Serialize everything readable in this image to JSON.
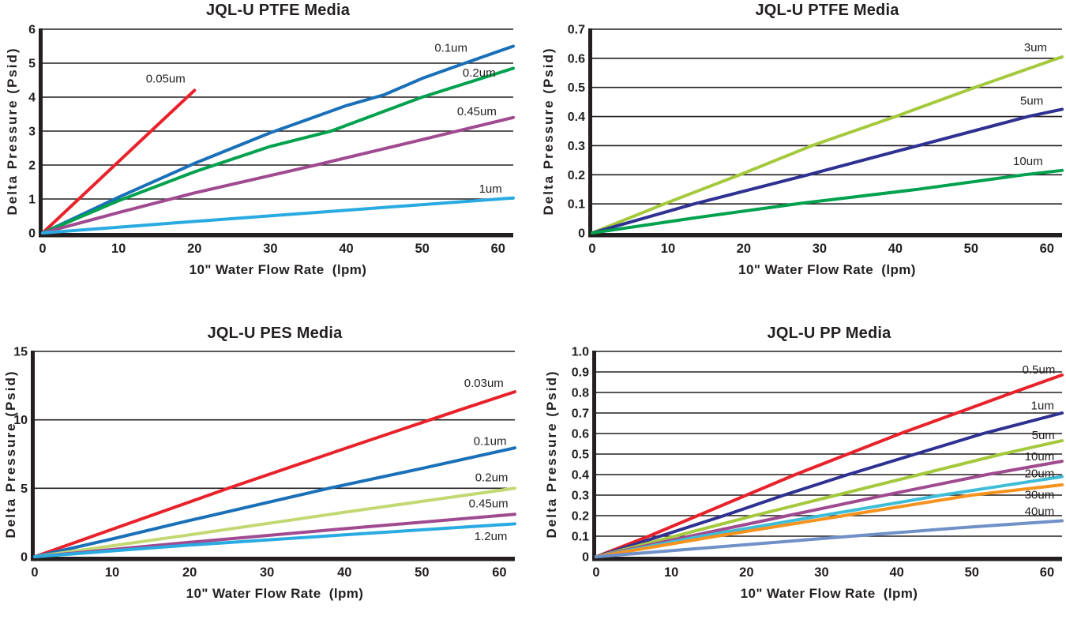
{
  "style": {
    "background": "#ffffff",
    "axis_color": "#231f20",
    "series_stroke_width": 4,
    "palette": {
      "red": "#e8222b",
      "blue": "#1a70b8",
      "green": "#00a14e",
      "magenta": "#a04a90",
      "cyan": "#29abe2",
      "navy": "#2e3192",
      "yellow_green": "#a4c93c",
      "pale_green": "#c3d872",
      "teal": "#3fbdd8",
      "orange": "#f6921e",
      "steel_blue": "#7090c8"
    }
  },
  "chart_data": [
    {
      "type": "line",
      "title": "JQL-U PTFE Media",
      "xlabel": "10\" Water Flow Rate  (lpm)",
      "ylabel": "Delta Pressure (Psid)",
      "xlim": [
        0,
        62
      ],
      "ylim": [
        0,
        6
      ],
      "xticks": [
        0,
        10,
        20,
        30,
        40,
        50,
        60
      ],
      "yticks": [
        0,
        1,
        2,
        3,
        4,
        5,
        6
      ],
      "ytick_labels": [
        "0",
        "1",
        "2",
        "3",
        "4",
        "5",
        "6"
      ],
      "grid": "horizontal",
      "legend_position": "inline-labels",
      "series": [
        {
          "name": "0.05um",
          "color": "#e8222b",
          "points": [
            [
              0,
              0
            ],
            [
              5,
              1.05
            ],
            [
              10,
              2.1
            ],
            [
              15,
              3.15
            ],
            [
              20,
              4.2
            ]
          ],
          "label_pos": [
            16.2,
            4.55
          ]
        },
        {
          "name": "0.1um",
          "color": "#1a70b8",
          "points": [
            [
              0,
              0
            ],
            [
              10,
              1.05
            ],
            [
              20,
              2.05
            ],
            [
              30,
              2.95
            ],
            [
              40,
              3.75
            ],
            [
              45,
              4.07
            ],
            [
              50,
              4.55
            ],
            [
              55,
              4.95
            ],
            [
              62,
              5.5
            ]
          ],
          "label_pos": [
            53.8,
            5.45
          ]
        },
        {
          "name": "0.2um",
          "color": "#00a14e",
          "points": [
            [
              0,
              0
            ],
            [
              10,
              0.95
            ],
            [
              20,
              1.8
            ],
            [
              30,
              2.55
            ],
            [
              38,
              3.0
            ],
            [
              50,
              4.0
            ],
            [
              62,
              4.85
            ]
          ],
          "label_pos": [
            57.5,
            4.72
          ]
        },
        {
          "name": "0.45um",
          "color": "#a04a90",
          "points": [
            [
              0,
              0
            ],
            [
              10,
              0.6
            ],
            [
              20,
              1.18
            ],
            [
              36,
              2.0
            ],
            [
              50,
              2.75
            ],
            [
              62,
              3.4
            ]
          ],
          "label_pos": [
            57.2,
            3.58
          ]
        },
        {
          "name": "1um",
          "color": "#29abe2",
          "points": [
            [
              0,
              0
            ],
            [
              20,
              0.34
            ],
            [
              40,
              0.67
            ],
            [
              62,
              1.03
            ]
          ],
          "label_pos": [
            59,
            1.3
          ]
        }
      ]
    },
    {
      "type": "line",
      "title": "JQL-U PTFE Media",
      "xlabel": "10\" Water Flow Rate  (lpm)",
      "ylabel": "Delta Pressure (Psid)",
      "xlim": [
        0,
        62
      ],
      "ylim": [
        0,
        0.7
      ],
      "xticks": [
        0,
        10,
        20,
        30,
        40,
        50,
        60
      ],
      "yticks": [
        0,
        0.1,
        0.2,
        0.3,
        0.4,
        0.5,
        0.6,
        0.7
      ],
      "ytick_labels": [
        "0",
        "0.1",
        "0.2",
        "0.3",
        "0.4",
        "0.5",
        "0.6",
        "0.7"
      ],
      "grid": "horizontal",
      "legend_position": "inline-labels",
      "series": [
        {
          "name": "3um",
          "color": "#a4c93c",
          "points": [
            [
              0,
              0
            ],
            [
              10,
              0.105
            ],
            [
              19.5,
              0.2
            ],
            [
              29,
              0.3
            ],
            [
              40,
              0.4
            ],
            [
              50.5,
              0.5
            ],
            [
              62,
              0.605
            ]
          ],
          "label_pos": [
            58.5,
            0.637
          ]
        },
        {
          "name": "5um",
          "color": "#2e3192",
          "points": [
            [
              0,
              0
            ],
            [
              13.5,
              0.1
            ],
            [
              28.5,
              0.2
            ],
            [
              43,
              0.3
            ],
            [
              57.5,
              0.4
            ],
            [
              62,
              0.425
            ]
          ],
          "label_pos": [
            58,
            0.455
          ]
        },
        {
          "name": "10um",
          "color": "#00a14e",
          "points": [
            [
              0,
              0
            ],
            [
              13,
              0.05
            ],
            [
              27,
              0.1
            ],
            [
              43,
              0.15
            ],
            [
              57,
              0.2
            ],
            [
              62,
              0.215
            ]
          ],
          "label_pos": [
            57.5,
            0.247
          ]
        }
      ]
    },
    {
      "type": "line",
      "title": "JQL-U PES Media",
      "xlabel": "10\" Water Flow Rate  (lpm)",
      "ylabel": "Delta Pressure (Psid)",
      "xlim": [
        0,
        62
      ],
      "ylim": [
        0,
        15
      ],
      "xticks": [
        0,
        10,
        20,
        30,
        40,
        50,
        60
      ],
      "yticks": [
        0,
        5,
        10,
        15
      ],
      "ytick_labels": [
        "0",
        "5",
        "10",
        "15"
      ],
      "grid": "horizontal",
      "legend_position": "inline-labels",
      "series": [
        {
          "name": "0.03um",
          "color": "#e8222b",
          "points": [
            [
              0,
              0
            ],
            [
              10,
              2.0
            ],
            [
              25,
              5.0
            ],
            [
              40,
              7.9
            ],
            [
              55,
              10.75
            ],
            [
              62,
              12.05
            ]
          ],
          "label_pos": [
            58,
            12.7
          ]
        },
        {
          "name": "0.1um",
          "color": "#1a70b8",
          "points": [
            [
              0,
              0
            ],
            [
              10,
              1.3
            ],
            [
              20,
              2.65
            ],
            [
              38,
              5.0
            ],
            [
              50,
              6.45
            ],
            [
              62,
              7.95
            ]
          ],
          "label_pos": [
            58.8,
            8.45
          ]
        },
        {
          "name": "0.2um",
          "color": "#c3d872",
          "points": [
            [
              0,
              0
            ],
            [
              20,
              1.6
            ],
            [
              40,
              3.25
            ],
            [
              62,
              5.0
            ]
          ],
          "label_pos": [
            59,
            5.8
          ]
        },
        {
          "name": "0.45um",
          "color": "#a04a90",
          "points": [
            [
              0,
              0
            ],
            [
              20,
              1.05
            ],
            [
              40,
              2.05
            ],
            [
              62,
              3.1
            ]
          ],
          "label_pos": [
            58.6,
            3.9
          ]
        },
        {
          "name": "1.2um",
          "color": "#29abe2",
          "points": [
            [
              0,
              0
            ],
            [
              20,
              0.85
            ],
            [
              40,
              1.6
            ],
            [
              62,
              2.4
            ]
          ],
          "label_pos": [
            58.9,
            1.5
          ]
        }
      ]
    },
    {
      "type": "line",
      "title": "JQL-U PP Media",
      "xlabel": "10\" Water Flow Rate  (lpm)",
      "ylabel": "Delta Pressure (Psid)",
      "xlim": [
        0,
        62
      ],
      "ylim": [
        0,
        1.0
      ],
      "xticks": [
        0,
        10,
        20,
        30,
        40,
        50,
        60
      ],
      "yticks": [
        0,
        0.1,
        0.2,
        0.3,
        0.4,
        0.5,
        0.6,
        0.7,
        0.8,
        0.9,
        1.0
      ],
      "ytick_labels": [
        "0",
        "0.1",
        "0.2",
        "0.3",
        "0.4",
        "0.5",
        "0.6",
        "0.7",
        "0.8",
        "0.9",
        "1.0"
      ],
      "grid": "horizontal",
      "legend_position": "inline-labels",
      "series": [
        {
          "name": "0.5um",
          "color": "#e8222b",
          "points": [
            [
              0,
              0
            ],
            [
              7,
              0.1
            ],
            [
              13.5,
              0.2
            ],
            [
              20,
              0.3
            ],
            [
              26.5,
              0.4
            ],
            [
              33.5,
              0.5
            ],
            [
              40.5,
              0.6
            ],
            [
              48,
              0.7
            ],
            [
              55.5,
              0.8
            ],
            [
              62,
              0.885
            ]
          ],
          "label_pos": [
            58.9,
            0.912
          ]
        },
        {
          "name": "1um",
          "color": "#2e3192",
          "points": [
            [
              0,
              0
            ],
            [
              8.5,
              0.1
            ],
            [
              17,
              0.2
            ],
            [
              25,
              0.3
            ],
            [
              33.5,
              0.4
            ],
            [
              42.5,
              0.5
            ],
            [
              51.5,
              0.6
            ],
            [
              62,
              0.7
            ]
          ],
          "label_pos": [
            59.4,
            0.737
          ]
        },
        {
          "name": "5um",
          "color": "#a4c93c",
          "points": [
            [
              0,
              0
            ],
            [
              10.5,
              0.1
            ],
            [
              21,
              0.2
            ],
            [
              32,
              0.3
            ],
            [
              43,
              0.4
            ],
            [
              54,
              0.5
            ],
            [
              62,
              0.565
            ]
          ],
          "label_pos": [
            59.5,
            0.592
          ]
        },
        {
          "name": "10um",
          "color": "#a04a90",
          "points": [
            [
              0,
              0
            ],
            [
              12.5,
              0.1
            ],
            [
              25.5,
              0.2
            ],
            [
              38.5,
              0.3
            ],
            [
              52,
              0.4
            ],
            [
              62,
              0.465
            ]
          ],
          "label_pos": [
            59,
            0.488
          ]
        },
        {
          "name": "20um",
          "color": "#3fbdd8",
          "points": [
            [
              0,
              0
            ],
            [
              14,
              0.1
            ],
            [
              30,
              0.2
            ],
            [
              46,
              0.3
            ],
            [
              62,
              0.39
            ]
          ],
          "label_pos": [
            59,
            0.405
          ]
        },
        {
          "name": "30um",
          "color": "#f6921e",
          "points": [
            [
              0,
              0
            ],
            [
              16,
              0.1
            ],
            [
              33,
              0.2
            ],
            [
              50,
              0.3
            ],
            [
              62,
              0.35
            ]
          ],
          "label_pos": [
            59,
            0.302
          ]
        },
        {
          "name": "40um",
          "color": "#7090c8",
          "points": [
            [
              0,
              0
            ],
            [
              17,
              0.05
            ],
            [
              34,
              0.1
            ],
            [
              48,
              0.14
            ],
            [
              62,
              0.175
            ]
          ],
          "label_pos": [
            59,
            0.222
          ]
        }
      ]
    }
  ]
}
